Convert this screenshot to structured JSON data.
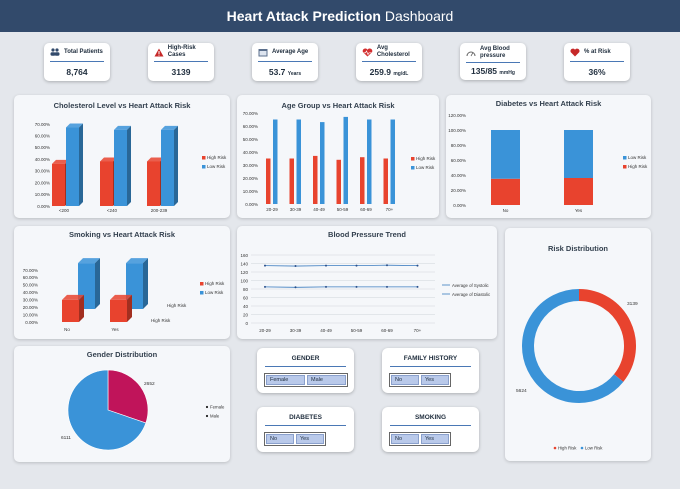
{
  "header": {
    "title_bold": "Heart Attack Prediction",
    "title_rest": " Dashboard"
  },
  "kpis": [
    {
      "label": "Total Patients",
      "value": "8,764",
      "unit": "",
      "icon": "people-icon"
    },
    {
      "label": "High-Risk Cases",
      "value": "3139",
      "unit": "",
      "icon": "warning-icon"
    },
    {
      "label": "Average Age",
      "value": "53.7",
      "unit": "Years",
      "icon": "calendar-icon"
    },
    {
      "label": "Avg Cholesterol",
      "value": "259.9",
      "unit": "mg/dL",
      "icon": "heartbeat-icon"
    },
    {
      "label": "Avg Blood pressure",
      "value": "135/85",
      "unit": "mmHg",
      "icon": "gauge-icon"
    },
    {
      "label": "% at Risk",
      "value": "36%",
      "unit": "",
      "icon": "heart-icon"
    }
  ],
  "colors": {
    "high": "#e8432e",
    "low": "#3a93d8",
    "pink": "#c0145a"
  },
  "chart_data": [
    {
      "type": "bar",
      "title": "Cholesterol Level vs Heart Attack Risk",
      "categories": [
        "<200",
        "<240",
        "200-239"
      ],
      "yticks": [
        "0.00%",
        "10.00%",
        "20.00%",
        "30.00%",
        "40.00%",
        "50.00%",
        "60.00%",
        "70.00%"
      ],
      "ylim": [
        0,
        70
      ],
      "series": [
        {
          "name": "High Risk",
          "values": [
            36,
            38,
            38
          ]
        },
        {
          "name": "Low Risk",
          "values": [
            67,
            65,
            65
          ]
        }
      ]
    },
    {
      "type": "bar",
      "title": "Age Group vs Heart Attack Risk",
      "categories": [
        "20-29",
        "30-39",
        "40-49",
        "50-59",
        "60-69",
        "70+"
      ],
      "yticks": [
        "0.00%",
        "10.00%",
        "20.00%",
        "30.00%",
        "40.00%",
        "50.00%",
        "60.00%",
        "70.00%"
      ],
      "ylim": [
        0,
        70
      ],
      "series": [
        {
          "name": "High Risk",
          "values": [
            35,
            35,
            37,
            34,
            36,
            35
          ]
        },
        {
          "name": "Low Risk",
          "values": [
            65,
            65,
            63,
            67,
            65,
            65
          ]
        }
      ]
    },
    {
      "type": "bar",
      "stacked": true,
      "title": "Diabetes vs Heart Attack Risk",
      "categories": [
        "No",
        "Yes"
      ],
      "yticks": [
        "0.00%",
        "20.00%",
        "40.00%",
        "60.00%",
        "80.00%",
        "100.00%",
        "120.00%"
      ],
      "ylim": [
        0,
        120
      ],
      "series": [
        {
          "name": "Low Risk",
          "values": [
            65,
            64
          ]
        },
        {
          "name": "High Risk",
          "values": [
            35,
            36
          ]
        }
      ]
    },
    {
      "type": "bar",
      "title": "Smoking vs Heart Attack Risk",
      "categories": [
        "No",
        "Yes"
      ],
      "yticks": [
        "0.00%",
        "10.00%",
        "20.00%",
        "30.00%",
        "40.00%",
        "50.00%",
        "60.00%",
        "70.00%"
      ],
      "ylim": [
        0,
        70
      ],
      "series": [
        {
          "name": "High Risk",
          "values": [
            35,
            35
          ]
        },
        {
          "name": "Low Risk",
          "values": [
            65,
            65
          ]
        }
      ],
      "annotation": "High Risk"
    },
    {
      "type": "line",
      "title": "Blood Pressure Trend",
      "categories": [
        "20-29",
        "30-39",
        "40-49",
        "50-59",
        "60-69",
        "70+"
      ],
      "yticks": [
        "0",
        "20",
        "40",
        "60",
        "80",
        "100",
        "120",
        "140",
        "160"
      ],
      "ylim": [
        0,
        160
      ],
      "series": [
        {
          "name": "Average of Systolic",
          "values": [
            135,
            134,
            135,
            135,
            136,
            135
          ]
        },
        {
          "name": "Average of Diastolic",
          "values": [
            85,
            84,
            85,
            85,
            85,
            85
          ]
        }
      ]
    },
    {
      "type": "pie",
      "donut": true,
      "title": "Risk Distribution",
      "slices": [
        {
          "name": "High Risk",
          "value": 3139
        },
        {
          "name": "Low Risk",
          "value": 5624
        }
      ]
    },
    {
      "type": "pie",
      "title": "Gender Distribution",
      "slices": [
        {
          "name": "Female",
          "value": 2652
        },
        {
          "name": "Male",
          "value": 6111
        }
      ]
    }
  ],
  "slicers": [
    {
      "title": "GENDER",
      "options": [
        "Female",
        "Male"
      ]
    },
    {
      "title": "FAMILY HISTORY",
      "options": [
        "No",
        "Yes"
      ]
    },
    {
      "title": "DIABETES",
      "options": [
        "No",
        "Yes"
      ]
    },
    {
      "title": "SMOKING",
      "options": [
        "No",
        "Yes"
      ]
    }
  ]
}
